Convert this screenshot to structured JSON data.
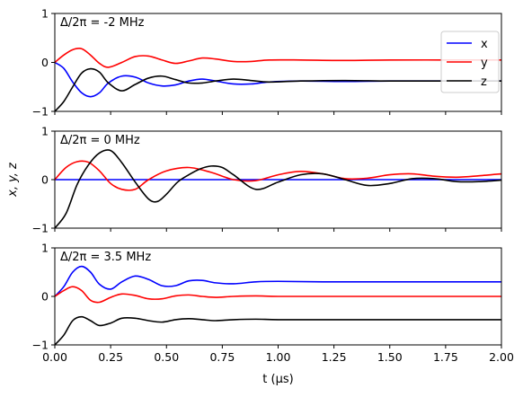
{
  "chart_data": [
    {
      "type": "line",
      "annotation": "Δ/2π = -2 MHz",
      "xlim": [
        0,
        2
      ],
      "ylim": [
        -1,
        1
      ],
      "yticks": [
        "-1",
        "0",
        "1"
      ],
      "show_x_ticklabels": false,
      "legend": {
        "placement": "right",
        "entries": [
          "x",
          "y",
          "z"
        ]
      },
      "series": [
        {
          "name": "x",
          "color": "#0000ff",
          "x": [
            0,
            0.04,
            0.08,
            0.12,
            0.16,
            0.2,
            0.24,
            0.3,
            0.36,
            0.42,
            0.48,
            0.54,
            0.6,
            0.66,
            0.72,
            0.8,
            0.88,
            0.96,
            1.1,
            1.3,
            1.5,
            1.75,
            2.0
          ],
          "y": [
            0.0,
            -0.12,
            -0.4,
            -0.62,
            -0.7,
            -0.62,
            -0.42,
            -0.28,
            -0.3,
            -0.42,
            -0.48,
            -0.46,
            -0.38,
            -0.34,
            -0.38,
            -0.44,
            -0.44,
            -0.4,
            -0.38,
            -0.39,
            -0.38,
            -0.38,
            -0.38
          ]
        },
        {
          "name": "y",
          "color": "#ff0000",
          "x": [
            0,
            0.04,
            0.08,
            0.12,
            0.16,
            0.2,
            0.24,
            0.3,
            0.36,
            0.42,
            0.48,
            0.54,
            0.6,
            0.66,
            0.72,
            0.8,
            0.88,
            0.96,
            1.1,
            1.3,
            1.5,
            1.75,
            2.0
          ],
          "y": [
            0.0,
            0.15,
            0.26,
            0.28,
            0.15,
            -0.02,
            -0.1,
            0.0,
            0.12,
            0.13,
            0.05,
            -0.02,
            0.03,
            0.09,
            0.07,
            0.02,
            0.02,
            0.05,
            0.05,
            0.04,
            0.05,
            0.05,
            0.05
          ]
        },
        {
          "name": "z",
          "color": "#000000",
          "x": [
            0,
            0.04,
            0.08,
            0.12,
            0.16,
            0.2,
            0.24,
            0.3,
            0.36,
            0.42,
            0.48,
            0.54,
            0.6,
            0.66,
            0.72,
            0.8,
            0.88,
            0.96,
            1.1,
            1.3,
            1.5,
            1.75,
            2.0
          ],
          "y": [
            -1.0,
            -0.8,
            -0.5,
            -0.22,
            -0.13,
            -0.2,
            -0.42,
            -0.58,
            -0.45,
            -0.32,
            -0.28,
            -0.35,
            -0.42,
            -0.42,
            -0.38,
            -0.34,
            -0.37,
            -0.4,
            -0.38,
            -0.37,
            -0.38,
            -0.38,
            -0.38
          ]
        }
      ]
    },
    {
      "type": "line",
      "annotation": "Δ/2π = 0 MHz",
      "ylabel": "x, y, z",
      "xlim": [
        0,
        2
      ],
      "ylim": [
        -1,
        1
      ],
      "yticks": [
        "-1",
        "0",
        "1"
      ],
      "show_x_ticklabels": false,
      "series": [
        {
          "name": "x",
          "color": "#0000ff",
          "x": [
            0,
            2.0
          ],
          "y": [
            0.0,
            0.0
          ]
        },
        {
          "name": "y",
          "color": "#ff0000",
          "x": [
            0,
            0.05,
            0.1,
            0.15,
            0.2,
            0.25,
            0.3,
            0.36,
            0.42,
            0.5,
            0.6,
            0.7,
            0.8,
            0.9,
            1.0,
            1.1,
            1.2,
            1.3,
            1.4,
            1.5,
            1.6,
            1.7,
            1.8,
            1.9,
            2.0
          ],
          "y": [
            0.0,
            0.25,
            0.37,
            0.36,
            0.18,
            -0.08,
            -0.2,
            -0.2,
            0.0,
            0.18,
            0.25,
            0.15,
            0.0,
            -0.02,
            0.1,
            0.17,
            0.12,
            0.02,
            0.03,
            0.1,
            0.12,
            0.07,
            0.05,
            0.08,
            0.12
          ]
        },
        {
          "name": "z",
          "color": "#000000",
          "x": [
            0,
            0.05,
            0.1,
            0.15,
            0.2,
            0.25,
            0.3,
            0.36,
            0.42,
            0.46,
            0.5,
            0.55,
            0.6,
            0.65,
            0.7,
            0.75,
            0.8,
            0.9,
            1.0,
            1.1,
            1.2,
            1.3,
            1.4,
            1.5,
            1.6,
            1.7,
            1.8,
            1.9,
            2.0
          ],
          "y": [
            -1.0,
            -0.7,
            -0.1,
            0.3,
            0.55,
            0.6,
            0.35,
            -0.05,
            -0.4,
            -0.45,
            -0.3,
            -0.05,
            0.1,
            0.22,
            0.28,
            0.25,
            0.1,
            -0.2,
            -0.05,
            0.1,
            0.12,
            0.0,
            -0.12,
            -0.08,
            0.02,
            0.02,
            -0.04,
            -0.04,
            -0.01
          ]
        }
      ]
    },
    {
      "type": "line",
      "annotation": "Δ/2π = 3.5 MHz",
      "xlabel": "t (μs)",
      "xlim": [
        0,
        2
      ],
      "ylim": [
        -1,
        1
      ],
      "xticks": [
        "0.00",
        "0.25",
        "0.50",
        "0.75",
        "1.00",
        "1.25",
        "1.50",
        "1.75",
        "2.00"
      ],
      "yticks": [
        "-1",
        "0",
        "1"
      ],
      "show_x_ticklabels": true,
      "series": [
        {
          "name": "x",
          "color": "#0000ff",
          "x": [
            0,
            0.04,
            0.08,
            0.12,
            0.16,
            0.2,
            0.25,
            0.3,
            0.36,
            0.42,
            0.48,
            0.54,
            0.6,
            0.66,
            0.72,
            0.8,
            0.9,
            1.0,
            1.2,
            1.5,
            1.75,
            2.0
          ],
          "y": [
            0.0,
            0.2,
            0.5,
            0.62,
            0.5,
            0.25,
            0.15,
            0.3,
            0.42,
            0.35,
            0.22,
            0.22,
            0.32,
            0.33,
            0.28,
            0.26,
            0.3,
            0.31,
            0.3,
            0.3,
            0.3,
            0.3
          ]
        },
        {
          "name": "y",
          "color": "#ff0000",
          "x": [
            0,
            0.04,
            0.08,
            0.12,
            0.16,
            0.2,
            0.25,
            0.3,
            0.36,
            0.42,
            0.48,
            0.54,
            0.6,
            0.66,
            0.72,
            0.8,
            0.9,
            1.0,
            1.2,
            1.5,
            1.75,
            2.0
          ],
          "y": [
            0.0,
            0.12,
            0.2,
            0.12,
            -0.08,
            -0.12,
            -0.02,
            0.05,
            0.02,
            -0.05,
            -0.05,
            0.01,
            0.03,
            0.0,
            -0.02,
            0.0,
            0.01,
            0.0,
            0.0,
            0.0,
            0.0,
            0.0
          ]
        },
        {
          "name": "z",
          "color": "#000000",
          "x": [
            0,
            0.04,
            0.08,
            0.12,
            0.16,
            0.2,
            0.25,
            0.3,
            0.36,
            0.42,
            0.48,
            0.54,
            0.6,
            0.66,
            0.72,
            0.8,
            0.9,
            1.0,
            1.2,
            1.5,
            1.75,
            2.0
          ],
          "y": [
            -1.0,
            -0.8,
            -0.5,
            -0.42,
            -0.5,
            -0.6,
            -0.55,
            -0.45,
            -0.45,
            -0.5,
            -0.53,
            -0.48,
            -0.46,
            -0.48,
            -0.5,
            -0.48,
            -0.47,
            -0.48,
            -0.48,
            -0.48,
            -0.48,
            -0.48
          ]
        }
      ]
    }
  ]
}
